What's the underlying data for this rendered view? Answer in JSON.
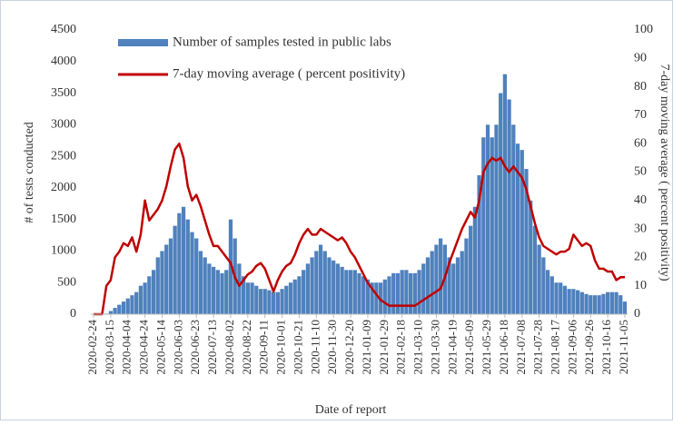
{
  "chart_data": {
    "type": "bar-line",
    "x_label": "Date of report",
    "y_label": "# of tests conducted",
    "y2_label": "7-day moving average ( percent positivity)",
    "categories": [
      "2020-02-24",
      null,
      null,
      null,
      "2020-03-15",
      null,
      null,
      null,
      "2020-04-04",
      null,
      null,
      null,
      "2020-04-24",
      null,
      null,
      null,
      "2020-05-14",
      null,
      null,
      null,
      "2020-06-03",
      null,
      null,
      null,
      "2020-06-23",
      null,
      null,
      null,
      "2020-07-13",
      null,
      null,
      null,
      "2020-08-02",
      null,
      null,
      null,
      "2020-08-22",
      null,
      null,
      null,
      "2020-09-11",
      null,
      null,
      null,
      "2020-10-01",
      null,
      null,
      null,
      "2020-10-21",
      null,
      null,
      null,
      "2020-11-10",
      null,
      null,
      null,
      "2020-11-30",
      null,
      null,
      null,
      "2020-12-20",
      null,
      null,
      null,
      "2021-01-09",
      null,
      null,
      null,
      "2021-01-29",
      null,
      null,
      null,
      "2021-02-18",
      null,
      null,
      null,
      "2021-03-10",
      null,
      null,
      null,
      "2021-03-30",
      null,
      null,
      null,
      "2021-04-19",
      null,
      null,
      null,
      "2021-05-09",
      null,
      null,
      null,
      "2021-05-29",
      null,
      null,
      null,
      "2021-06-18",
      null,
      null,
      null,
      "2021-07-08",
      null,
      null,
      null,
      "2021-07-28",
      null,
      null,
      null,
      "2021-08-17",
      null,
      null,
      null,
      "2021-09-06",
      null,
      null,
      null,
      "2021-09-26",
      null,
      null,
      null,
      "2021-10-16",
      null,
      null,
      null,
      "2021-11-05"
    ],
    "series": [
      {
        "name": "Number of samples tested in public labs",
        "color": "#4f81bd",
        "kind": "bar",
        "values": [
          0,
          0,
          0,
          10,
          50,
          100,
          150,
          200,
          250,
          300,
          350,
          450,
          500,
          600,
          700,
          900,
          1000,
          1100,
          1200,
          1400,
          1600,
          1700,
          1500,
          1300,
          1200,
          1000,
          900,
          800,
          750,
          700,
          650,
          700,
          1500,
          1200,
          800,
          600,
          500,
          500,
          450,
          400,
          400,
          380,
          350,
          350,
          400,
          450,
          500,
          550,
          600,
          700,
          800,
          900,
          1000,
          1100,
          1000,
          900,
          850,
          800,
          750,
          700,
          700,
          700,
          650,
          600,
          550,
          500,
          500,
          500,
          550,
          600,
          650,
          650,
          700,
          700,
          650,
          650,
          700,
          800,
          900,
          1000,
          1100,
          1200,
          1100,
          900,
          800,
          900,
          1000,
          1200,
          1400,
          1700,
          2200,
          2800,
          3000,
          2800,
          3000,
          3500,
          3800,
          3400,
          3000,
          2700,
          2600,
          2300,
          1800,
          1400,
          1100,
          900,
          700,
          600,
          500,
          500,
          450,
          400,
          400,
          380,
          350,
          320,
          300,
          300,
          300,
          320,
          350,
          350,
          350,
          300,
          200
        ]
      },
      {
        "name": "7-day moving average ( percent positivity)",
        "color": "#c00000",
        "kind": "line",
        "axis": "y2",
        "values": [
          0,
          0,
          0,
          10,
          12,
          20,
          22,
          25,
          24,
          27,
          22,
          28,
          40,
          33,
          35,
          37,
          40,
          45,
          52,
          58,
          60,
          55,
          45,
          40,
          42,
          38,
          33,
          28,
          24,
          24,
          22,
          20,
          18,
          13,
          10,
          12,
          14,
          15,
          17,
          18,
          16,
          12,
          8,
          12,
          15,
          17,
          18,
          21,
          25,
          28,
          30,
          28,
          28,
          30,
          29,
          28,
          27,
          26,
          27,
          25,
          22,
          20,
          17,
          14,
          11,
          9,
          7,
          5,
          4,
          3,
          3,
          3,
          3,
          3,
          3,
          3,
          4,
          5,
          6,
          7,
          8,
          9,
          13,
          18,
          22,
          26,
          30,
          33,
          36,
          34,
          40,
          50,
          53,
          55,
          54,
          55,
          52,
          50,
          52,
          50,
          48,
          44,
          38,
          32,
          27,
          24,
          23,
          22,
          21,
          22,
          22,
          23,
          28,
          26,
          24,
          25,
          24,
          19,
          16,
          16,
          15,
          15,
          12,
          13,
          13
        ]
      }
    ],
    "ylim": [
      0,
      4500
    ],
    "yticks": [
      0,
      500,
      1000,
      1500,
      2000,
      2500,
      3000,
      3500,
      4000,
      4500
    ],
    "y2lim": [
      0,
      100
    ],
    "y2ticks": [
      0,
      10,
      20,
      30,
      40,
      50,
      60,
      70,
      80,
      90,
      100
    ],
    "legend": "top"
  }
}
